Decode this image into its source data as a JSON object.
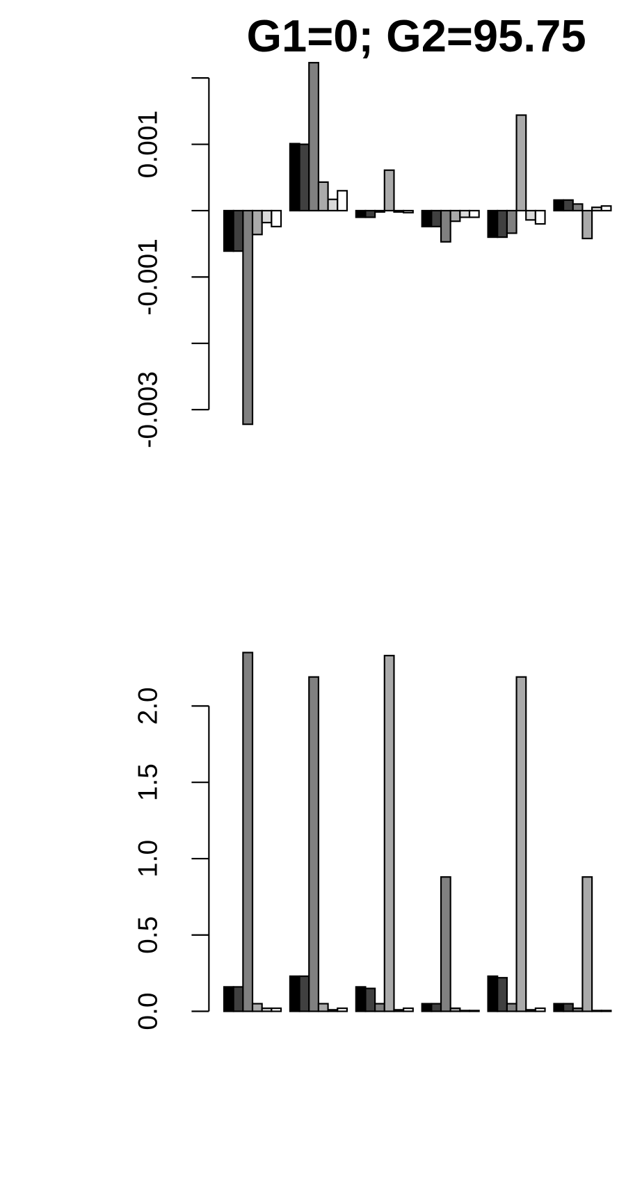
{
  "chart_data": [
    {
      "type": "bar",
      "title": "G1=0; G2=95.75",
      "ylim": [
        -0.0035,
        0.0025
      ],
      "yticks": [
        0.001,
        -0.001,
        -0.003
      ],
      "yticks_unlabeled": [
        0.002,
        0,
        -0.002
      ],
      "series": [
        {
          "color": "#000000",
          "values": [
            -0.00061,
            0.00101,
            -0.0001,
            -0.00024,
            -0.0004,
            0.00016
          ]
        },
        {
          "color": "#404040",
          "values": [
            -0.00061,
            0.001,
            -0.0001,
            -0.00024,
            -0.0004,
            0.00016
          ]
        },
        {
          "color": "#808080",
          "values": [
            -0.00322,
            0.00223,
            -2e-05,
            -0.00047,
            -0.00034,
            0.0001
          ]
        },
        {
          "color": "#aaaaaa",
          "values": [
            -0.00036,
            0.00043,
            0.00061,
            -0.00016,
            0.00144,
            -0.00042
          ]
        },
        {
          "color": "#d9d9d9",
          "values": [
            -0.00018,
            0.00017,
            -2e-05,
            -0.0001,
            -0.00014,
            5e-05
          ]
        },
        {
          "color": "#ffffff",
          "values": [
            -0.00024,
            0.0003,
            -3e-05,
            -0.0001,
            -0.0002,
            7e-05
          ]
        }
      ]
    },
    {
      "type": "bar",
      "ylim": [
        0,
        2.4
      ],
      "yticks": [
        {
          "value": 0,
          "label": "0.0"
        },
        0.5,
        {
          "value": 1,
          "label": "1.0"
        },
        1.5,
        {
          "value": 2,
          "label": "2.0"
        }
      ],
      "series": [
        {
          "color": "#000000",
          "values": [
            0.16,
            0.23,
            0.16,
            0.05,
            0.23,
            0.05
          ]
        },
        {
          "color": "#404040",
          "values": [
            0.16,
            0.23,
            0.15,
            0.05,
            0.22,
            0.05
          ]
        },
        {
          "color": "#808080",
          "values": [
            2.35,
            2.19,
            0.05,
            0.88,
            0.05,
            0.02
          ]
        },
        {
          "color": "#aaaaaa",
          "values": [
            0.05,
            0.05,
            2.33,
            0.02,
            2.19,
            0.88
          ]
        },
        {
          "color": "#d9d9d9",
          "values": [
            0.02,
            0.01,
            0.01,
            0.005,
            0.01,
            0.005
          ]
        },
        {
          "color": "#ffffff",
          "values": [
            0.02,
            0.02,
            0.02,
            0.005,
            0.02,
            0.005
          ]
        }
      ]
    }
  ]
}
